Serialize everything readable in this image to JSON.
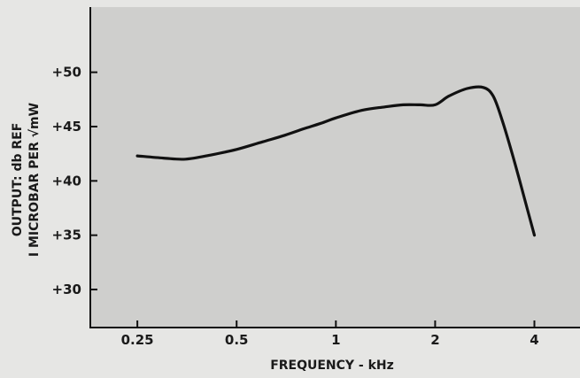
{
  "chart_data": {
    "type": "line",
    "xscale": "log",
    "xlabel": "FREQUENCY - kHz",
    "ylabel_line1": "OUTPUT: db REF",
    "ylabel_line2": "I MICROBAR PER √mW",
    "xticks": [
      0.25,
      0.5,
      1,
      2,
      4
    ],
    "xtick_labels": [
      "0.25",
      "0.5",
      "1",
      "2",
      "4"
    ],
    "yticks": [
      30,
      35,
      40,
      45,
      50
    ],
    "ytick_labels": [
      "+30",
      "+35",
      "+40",
      "+45",
      "+50"
    ],
    "xlim": [
      0.18,
      5.5
    ],
    "ylim": [
      26.5,
      56
    ],
    "grid": false,
    "colors": {
      "background": "#cfcfcd",
      "line": "#111111",
      "page": "#e6e6e4"
    },
    "series": [
      {
        "x": [
          0.25,
          0.3,
          0.35,
          0.42,
          0.5,
          0.6,
          0.7,
          0.8,
          0.9,
          1.0,
          1.2,
          1.4,
          1.6,
          1.8,
          2.0,
          2.2,
          2.5,
          2.8,
          3.0,
          3.2,
          3.5,
          3.8,
          4.0
        ],
        "y": [
          42.3,
          42.1,
          42.0,
          42.4,
          42.9,
          43.6,
          44.2,
          44.8,
          45.3,
          45.8,
          46.5,
          46.8,
          47.0,
          47.0,
          47.0,
          47.8,
          48.5,
          48.6,
          47.8,
          45.5,
          41.5,
          37.5,
          35.0
        ]
      }
    ]
  }
}
